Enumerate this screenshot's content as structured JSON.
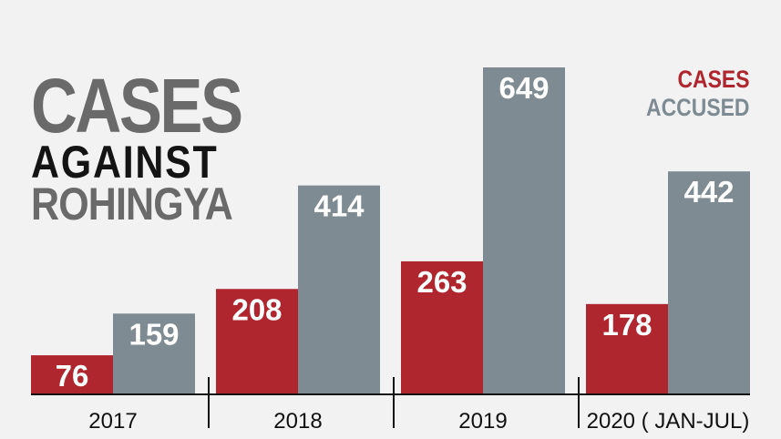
{
  "title": {
    "line1": "CASES",
    "line2": "AGAINST",
    "line3": "ROHINGYA"
  },
  "colors": {
    "cases": "#b0262e",
    "accused": "#7e8b92",
    "background": "#f2f2f2",
    "axis": "#111111"
  },
  "chart_data": {
    "type": "bar",
    "categories": [
      "2017",
      "2018",
      "2019",
      "2020 ( JAN-JUL)"
    ],
    "series": [
      {
        "name": "CASES",
        "values": [
          76,
          208,
          263,
          178
        ]
      },
      {
        "name": "ACCUSED",
        "values": [
          159,
          414,
          649,
          442
        ]
      }
    ],
    "ylim": [
      0,
      700
    ],
    "grid": false,
    "legend_position": "top-right"
  }
}
